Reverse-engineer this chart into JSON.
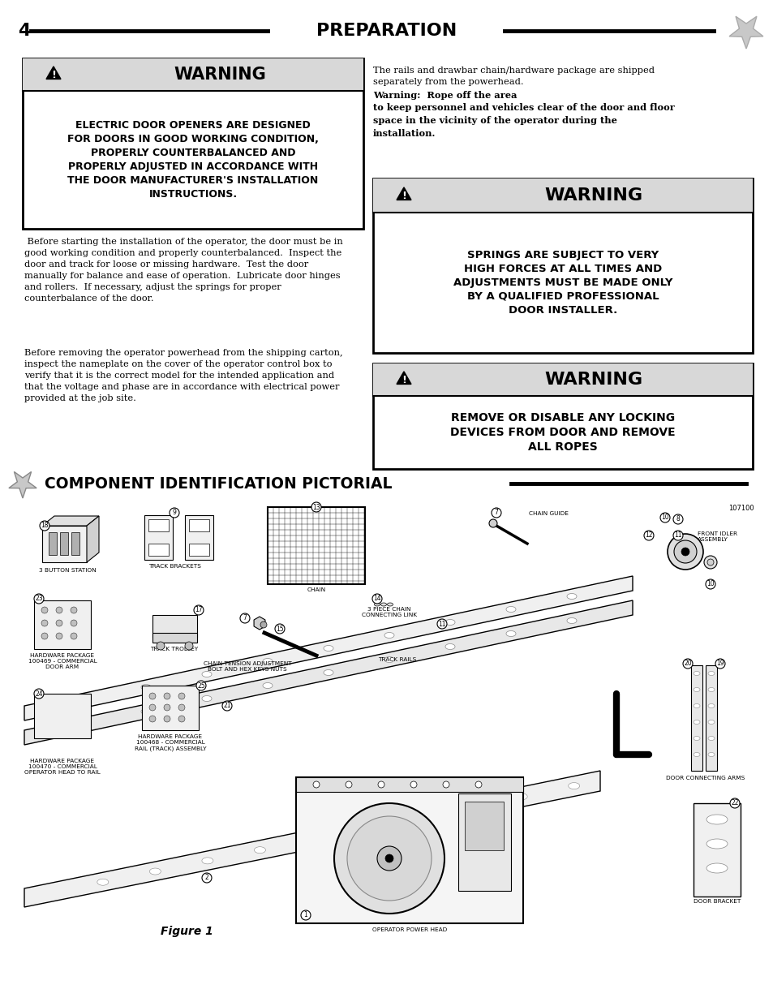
{
  "page_number": "4",
  "page_title": "PREPARATION",
  "bg_color": "#ffffff",
  "warning_header_bg": "#d8d8d8",
  "border_color": "#000000",
  "warning1_header": "WARNING",
  "warning1_body": "ELECTRIC DOOR OPENERS ARE DESIGNED\nFOR DOORS IN GOOD WORKING CONDITION,\nPROPERLY COUNTERBALANCED AND\nPROPERLY ADJUSTED IN ACCORDANCE WITH\nTHE DOOR MANUFACTURER'S INSTALLATION\nINSTRUCTIONS.",
  "right_para_1": "The rails and drawbar chain/hardware package are shipped\nseparately from the powerhead. ",
  "right_para_bold": "Warning:  Rope off the area\nto keep personnel and vehicles clear of the door and floor\nspace in the vicinity of the operator during the\ninstallation.",
  "left_body_para1": " Before starting the installation of the operator, the door must be in\ngood working condition and properly counterbalanced.  Inspect the\ndoor and track for loose or missing hardware.  Test the door\nmanually for balance and ease of operation.  Lubricate door hinges\nand rollers.  If necessary, adjust the springs for proper\ncounterbalance of the door.",
  "left_body_para2": "Before removing the operator powerhead from the shipping carton,\ninspect the nameplate on the cover of the operator control box to\nverify that it is the correct model for the intended application and\nthat the voltage and phase are in accordance with electrical power\nprovided at the job site.",
  "warning2_header": "WARNING",
  "warning2_body": "SPRINGS ARE SUBJECT TO VERY\nHIGH FORCES AT ALL TIMES AND\nADJUSTMENTS MUST BE MADE ONLY\nBY A QUALIFIED PROFESSIONAL\nDOOR INSTALLER.",
  "warning3_header": "WARNING",
  "warning3_body": "REMOVE OR DISABLE ANY LOCKING\nDEVICES FROM DOOR AND REMOVE\nALL ROPES",
  "section2_title": "COMPONENT IDENTIFICATION PICTORIAL",
  "catalog_number": "107100",
  "figure_caption": "Figure 1",
  "label_3btn": "3 BUTTON STATION",
  "label_track_brackets": "TRACK BRACKETS",
  "label_track_trolley": "TRACK TROLLEY",
  "label_chain_tension": "CHAIN TENSION ADJUSTMENT\nBOLT AND HEX KEYS NUTS",
  "label_hw_469": "HARDWARE PACKAGE\n100469 - COMMERCIAL\nDOOR ARM",
  "label_hw_468": "HARDWARE PACKAGE\n100468 - COMMERCIAL\nRAIL (TRACK) ASSEMBLY",
  "label_hw_470": "HARDWARE PACKAGE\n100470 - COMMERCIAL\nOPERATOR HEAD TO RAIL",
  "label_track_rails": "TRACK RAILS",
  "label_door_arms": "DOOR CONNECTING ARMS",
  "label_door_bracket": "DOOR BRACKET",
  "label_chain_guide": "CHAIN GUIDE",
  "label_front_idler": "FRONT IDLER\nASSEMBLY",
  "label_chain": "CHAIN",
  "label_3piece": "3 PIECE CHAIN\nCONNECTING LINK",
  "label_power_head": "OPERATOR POWER HEAD"
}
